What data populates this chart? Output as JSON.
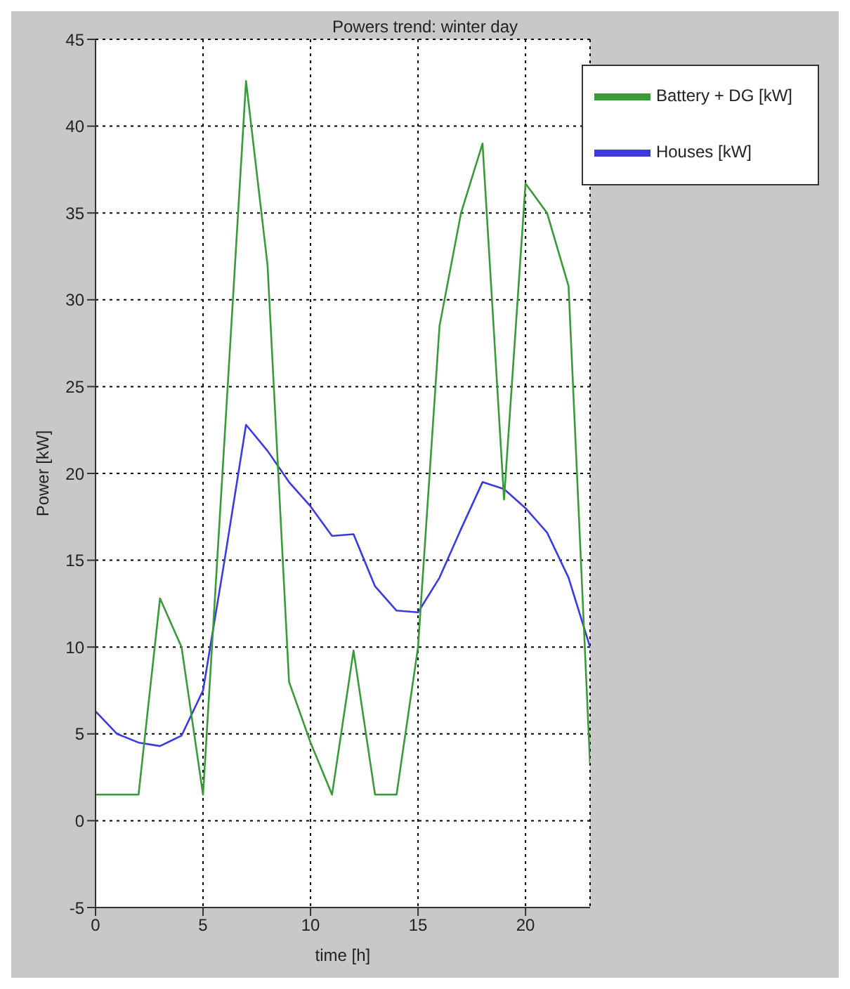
{
  "chart_data": {
    "type": "line",
    "title": "Powers trend: winter day",
    "xlabel": "time [h]",
    "ylabel": "Power [kW]",
    "x": [
      0,
      1,
      2,
      3,
      4,
      5,
      6,
      7,
      8,
      9,
      10,
      11,
      12,
      13,
      14,
      15,
      16,
      17,
      18,
      19,
      20,
      21,
      22,
      23
    ],
    "series": [
      {
        "name": "Houses [kW]",
        "color": "#3a3ae0",
        "values": [
          6.3,
          5.0,
          4.5,
          4.3,
          4.9,
          7.5,
          15,
          22.8,
          21.3,
          19.5,
          18.1,
          16.4,
          16.5,
          13.5,
          12.1,
          12.0,
          14.0,
          16.8,
          19.5,
          19.1,
          18.0,
          16.6,
          14,
          10
        ]
      },
      {
        "name": "Battery + DG [kW]",
        "color": "#3a9a3a",
        "values": [
          1.5,
          1.5,
          1.5,
          12.8,
          10,
          1.5,
          22,
          42.6,
          32,
          8,
          4.5,
          1.5,
          9.8,
          1.5,
          1.5,
          10,
          28.5,
          35,
          39,
          18.5,
          36.7,
          35,
          30.8,
          3.3
        ]
      }
    ],
    "xlim": [
      0,
      23
    ],
    "xticks": [
      0,
      5,
      10,
      15,
      20
    ],
    "ylim": [
      -5,
      45
    ],
    "yticks": [
      -5,
      0,
      5,
      10,
      15,
      20,
      25,
      30,
      35,
      40,
      45
    ],
    "grid": true,
    "legend": "top right",
    "marker": "none",
    "line_style": "solid"
  }
}
